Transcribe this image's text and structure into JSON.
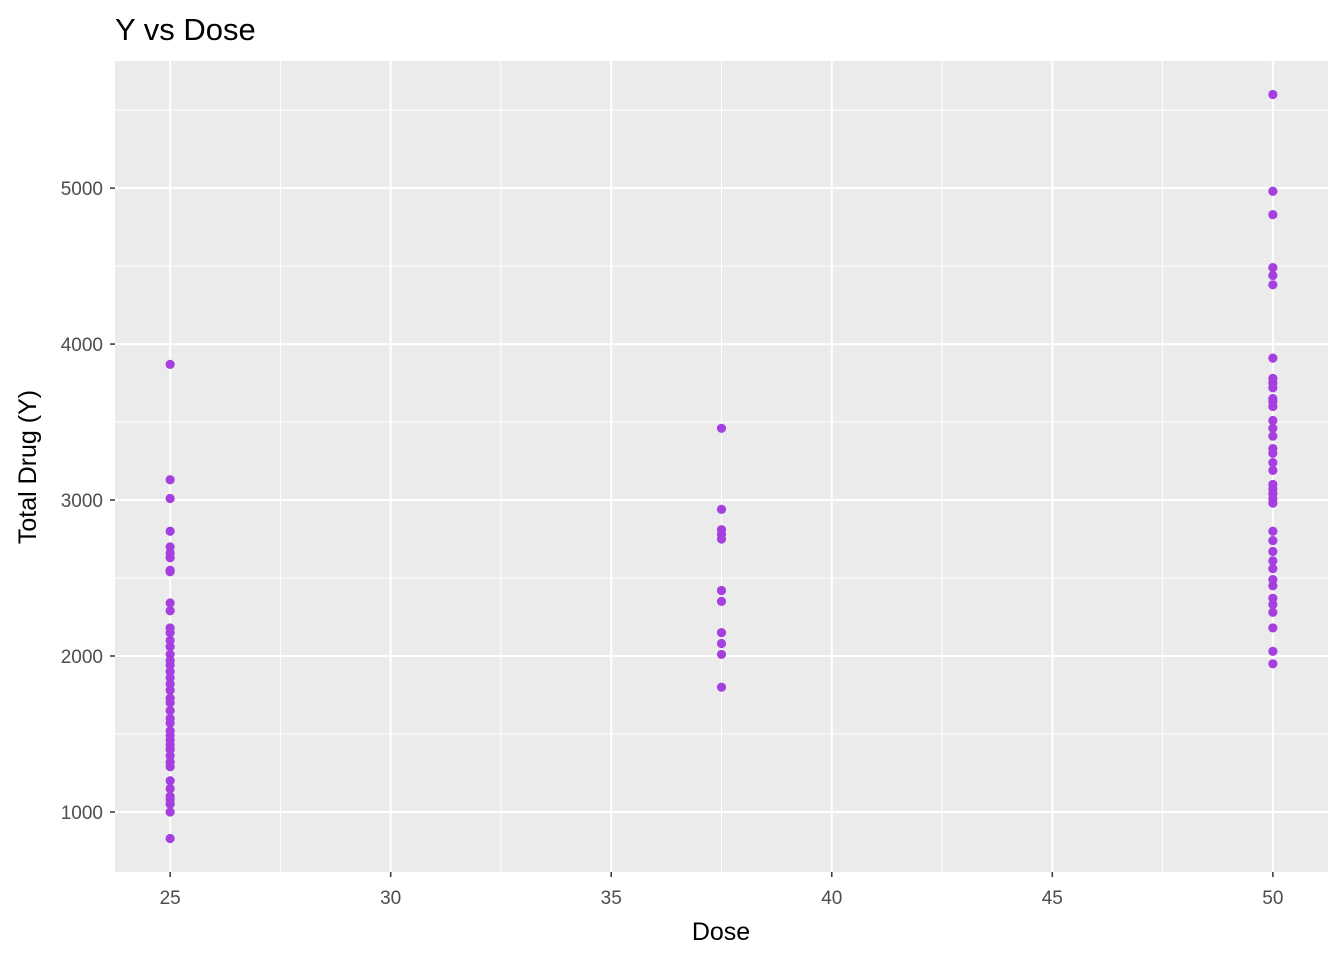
{
  "chart_data": {
    "type": "scatter",
    "title": "Y vs Dose",
    "xlabel": "Dose",
    "ylabel": "Total Drug (Y)",
    "xlim": [
      23.75,
      51.25
    ],
    "ylim": [
      615,
      5815
    ],
    "x_ticks": [
      25,
      30,
      35,
      40,
      45,
      50
    ],
    "y_ticks": [
      1000,
      2000,
      3000,
      4000,
      5000
    ],
    "x_minor": [
      27.5,
      32.5,
      37.5,
      42.5,
      47.5
    ],
    "y_minor": [
      1500,
      2500,
      3500,
      4500,
      5500
    ],
    "grid": true,
    "panel_background": "#ebebeb",
    "grid_color": "#ffffff",
    "point_color": "#a53fe0",
    "series": [
      {
        "points": [
          [
            25,
            830
          ],
          [
            25,
            1000
          ],
          [
            25,
            1050
          ],
          [
            25,
            1080
          ],
          [
            25,
            1100
          ],
          [
            25,
            1150
          ],
          [
            25,
            1200
          ],
          [
            25,
            1290
          ],
          [
            25,
            1320
          ],
          [
            25,
            1360
          ],
          [
            25,
            1400
          ],
          [
            25,
            1430
          ],
          [
            25,
            1460
          ],
          [
            25,
            1490
          ],
          [
            25,
            1520
          ],
          [
            25,
            1570
          ],
          [
            25,
            1600
          ],
          [
            25,
            1650
          ],
          [
            25,
            1700
          ],
          [
            25,
            1730
          ],
          [
            25,
            1780
          ],
          [
            25,
            1820
          ],
          [
            25,
            1860
          ],
          [
            25,
            1900
          ],
          [
            25,
            1940
          ],
          [
            25,
            1970
          ],
          [
            25,
            2010
          ],
          [
            25,
            2060
          ],
          [
            25,
            2100
          ],
          [
            25,
            2150
          ],
          [
            25,
            2180
          ],
          [
            25,
            2290
          ],
          [
            25,
            2340
          ],
          [
            25,
            2540
          ],
          [
            25,
            2550
          ],
          [
            25,
            2630
          ],
          [
            25,
            2660
          ],
          [
            25,
            2700
          ],
          [
            25,
            2800
          ],
          [
            25,
            3010
          ],
          [
            25,
            3130
          ],
          [
            25,
            3870
          ],
          [
            37.5,
            1800
          ],
          [
            37.5,
            2010
          ],
          [
            37.5,
            2080
          ],
          [
            37.5,
            2150
          ],
          [
            37.5,
            2350
          ],
          [
            37.5,
            2420
          ],
          [
            37.5,
            2750
          ],
          [
            37.5,
            2780
          ],
          [
            37.5,
            2810
          ],
          [
            37.5,
            2940
          ],
          [
            37.5,
            3460
          ],
          [
            50,
            1950
          ],
          [
            50,
            2030
          ],
          [
            50,
            2180
          ],
          [
            50,
            2280
          ],
          [
            50,
            2330
          ],
          [
            50,
            2370
          ],
          [
            50,
            2450
          ],
          [
            50,
            2490
          ],
          [
            50,
            2560
          ],
          [
            50,
            2610
          ],
          [
            50,
            2670
          ],
          [
            50,
            2740
          ],
          [
            50,
            2800
          ],
          [
            50,
            2980
          ],
          [
            50,
            3010
          ],
          [
            50,
            3040
          ],
          [
            50,
            3070
          ],
          [
            50,
            3100
          ],
          [
            50,
            3190
          ],
          [
            50,
            3240
          ],
          [
            50,
            3300
          ],
          [
            50,
            3330
          ],
          [
            50,
            3410
          ],
          [
            50,
            3460
          ],
          [
            50,
            3510
          ],
          [
            50,
            3600
          ],
          [
            50,
            3630
          ],
          [
            50,
            3650
          ],
          [
            50,
            3720
          ],
          [
            50,
            3750
          ],
          [
            50,
            3780
          ],
          [
            50,
            3910
          ],
          [
            50,
            4380
          ],
          [
            50,
            4440
          ],
          [
            50,
            4490
          ],
          [
            50,
            4830
          ],
          [
            50,
            4980
          ],
          [
            50,
            5600
          ]
        ]
      }
    ]
  }
}
